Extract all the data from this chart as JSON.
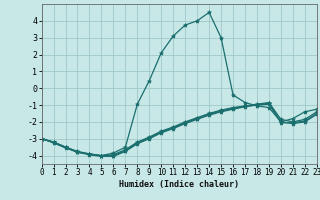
{
  "xlabel": "Humidex (Indice chaleur)",
  "background_color": "#c8e8e8",
  "grid_color": "#a0c8c8",
  "line_color": "#1a6e6e",
  "xlim": [
    0,
    23
  ],
  "ylim": [
    -4.5,
    5.0
  ],
  "yticks": [
    -4,
    -3,
    -2,
    -1,
    0,
    1,
    2,
    3,
    4
  ],
  "xticks": [
    0,
    1,
    2,
    3,
    4,
    5,
    6,
    7,
    8,
    9,
    10,
    11,
    12,
    13,
    14,
    15,
    16,
    17,
    18,
    19,
    20,
    21,
    22,
    23
  ],
  "series": [
    {
      "x": [
        0,
        1,
        2,
        3,
        4,
        5,
        6,
        7,
        8,
        9,
        10,
        11,
        12,
        13,
        14,
        15,
        16,
        17,
        18,
        19,
        20,
        21,
        22,
        23
      ],
      "y": [
        -3.0,
        -3.2,
        -3.5,
        -3.8,
        -3.9,
        -4.0,
        -3.85,
        -3.5,
        -0.95,
        0.45,
        2.1,
        3.1,
        3.75,
        4.0,
        4.5,
        3.0,
        -0.4,
        -0.85,
        -1.05,
        -1.15,
        -2.0,
        -1.8,
        -1.4,
        -1.25
      ]
    },
    {
      "x": [
        0,
        1,
        2,
        3,
        4,
        5,
        6,
        7,
        8,
        9,
        10,
        11,
        12,
        13,
        14,
        15,
        16,
        17,
        18,
        19,
        20,
        21,
        22,
        23
      ],
      "y": [
        -3.0,
        -3.2,
        -3.5,
        -3.75,
        -3.9,
        -4.0,
        -3.95,
        -3.65,
        -3.2,
        -2.9,
        -2.55,
        -2.3,
        -2.0,
        -1.75,
        -1.5,
        -1.3,
        -1.15,
        -1.05,
        -0.95,
        -0.85,
        -1.85,
        -2.0,
        -1.85,
        -1.4
      ]
    },
    {
      "x": [
        0,
        1,
        2,
        3,
        4,
        5,
        6,
        7,
        8,
        9,
        10,
        11,
        12,
        13,
        14,
        15,
        16,
        17,
        18,
        19,
        20,
        21,
        22,
        23
      ],
      "y": [
        -3.0,
        -3.25,
        -3.55,
        -3.8,
        -3.95,
        -4.05,
        -4.05,
        -3.75,
        -3.3,
        -3.0,
        -2.65,
        -2.4,
        -2.1,
        -1.85,
        -1.6,
        -1.4,
        -1.25,
        -1.1,
        -1.0,
        -0.95,
        -2.0,
        -2.1,
        -2.0,
        -1.55
      ]
    },
    {
      "x": [
        0,
        1,
        2,
        3,
        4,
        5,
        6,
        7,
        8,
        9,
        10,
        11,
        12,
        13,
        14,
        15,
        16,
        17,
        18,
        19,
        20,
        21,
        22,
        23
      ],
      "y": [
        -3.0,
        -3.2,
        -3.5,
        -3.78,
        -3.92,
        -4.02,
        -4.0,
        -3.72,
        -3.25,
        -2.95,
        -2.6,
        -2.35,
        -2.05,
        -1.8,
        -1.55,
        -1.35,
        -1.2,
        -1.08,
        -0.98,
        -0.9,
        -2.05,
        -2.05,
        -1.95,
        -1.5
      ]
    }
  ]
}
